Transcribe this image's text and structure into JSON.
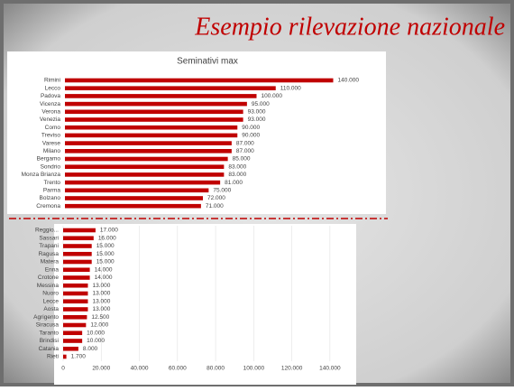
{
  "slide_title": "Esempio rilevazione nazionale",
  "chart_data": [
    {
      "type": "bar",
      "orientation": "horizontal",
      "title": "Seminativi max",
      "color": "#c00000",
      "categories": [
        "Rimini",
        "Lecco",
        "Padova",
        "Vicenza",
        "Verona",
        "Venezia",
        "Como",
        "Treviso",
        "Varese",
        "Milano",
        "Bergamo",
        "Sondrio",
        "Monza Brianza",
        "Trento",
        "Parma",
        "Bolzano",
        "Cremona"
      ],
      "values": [
        140000,
        110000,
        100000,
        95000,
        93000,
        93000,
        90000,
        90000,
        87000,
        87000,
        85000,
        83000,
        83000,
        81000,
        75000,
        72000,
        71000
      ],
      "value_labels": [
        "140.000",
        "110.000",
        "100.000",
        "95.000",
        "93.000",
        "93.000",
        "90.000",
        "90.000",
        "87.000",
        "87.000",
        "85.000",
        "83.000",
        "83.000",
        "81.000",
        "75.000",
        "72.000",
        "71.000"
      ],
      "xlim": [
        0,
        160000
      ]
    },
    {
      "type": "bar",
      "orientation": "horizontal",
      "color": "#c00000",
      "categories": [
        "Reggio...",
        "Sassari",
        "Trapani",
        "Ragusa",
        "Matera",
        "Enna",
        "Crotone",
        "Messina",
        "Nuoro",
        "Lecce",
        "Aosta",
        "Agrigento",
        "Siracusa",
        "Taranto",
        "Brindisi",
        "Catania",
        "Rieti"
      ],
      "values": [
        17000,
        16000,
        15000,
        15000,
        15000,
        14000,
        14000,
        13000,
        13000,
        13000,
        13000,
        12500,
        12000,
        10000,
        10000,
        8000,
        1700
      ],
      "value_labels": [
        "17.000",
        "16.000",
        "15.000",
        "15.000",
        "15.000",
        "14.000",
        "14.000",
        "13.000",
        "13.000",
        "13.000",
        "13.000",
        "12.500",
        "12.000",
        "10.000",
        "10.000",
        "8.000",
        "1.700"
      ],
      "xlim": [
        0,
        150000
      ],
      "xticks": [
        0,
        {
          "value": 20000,
          "label": "20.000"
        },
        {
          "value": 40000,
          "label": "40.000"
        },
        {
          "value": 60000,
          "label": "60.000"
        },
        {
          "value": 80000,
          "label": "80.000"
        },
        {
          "value": 100000,
          "label": "100.000"
        },
        {
          "value": 120000,
          "label": "120.000"
        },
        {
          "value": 140000,
          "label": "140.000"
        }
      ],
      "grid": true
    }
  ]
}
